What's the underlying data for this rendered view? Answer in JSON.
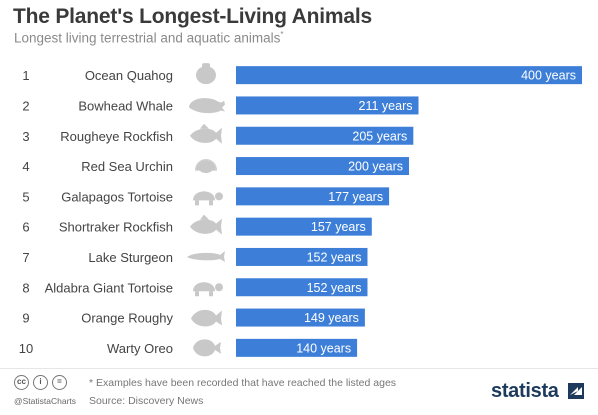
{
  "header": {
    "title": "The Planet's Longest-Living Animals",
    "subtitle": "Longest living terrestrial and aquatic animals",
    "subtitle_mark": "*"
  },
  "colors": {
    "bar": "#3d7fd8",
    "bar_label": "#ffffff",
    "rank_text": "#444444",
    "name_text": "#444444",
    "silhouette": "#c8c8c8",
    "row_band": "#f3f3f3"
  },
  "chart_data": {
    "type": "bar",
    "orientation": "horizontal",
    "title": "The Planet's Longest-Living Animals",
    "subtitle": "Longest living terrestrial and aquatic animals*",
    "xlim": [
      0,
      400
    ],
    "grid": false,
    "legend": "none",
    "ranks": [
      "1",
      "2",
      "3",
      "4",
      "5",
      "6",
      "7",
      "8",
      "9",
      "10"
    ],
    "categories": [
      "Ocean Quahog",
      "Bowhead Whale",
      "Rougheye Rockfish",
      "Red Sea Urchin",
      "Galapagos Tortoise",
      "Shortraker Rockfish",
      "Lake Sturgeon",
      "Aldabra Giant Tortoise",
      "Orange Roughy",
      "Warty Oreo"
    ],
    "icons": [
      "clam-icon",
      "whale-icon",
      "rockfish-icon",
      "urchin-icon",
      "tortoise-icon",
      "rockfish-icon",
      "sturgeon-icon",
      "tortoise-icon",
      "roughy-icon",
      "oreo-icon"
    ],
    "values": [
      400,
      211,
      205,
      200,
      177,
      157,
      152,
      152,
      149,
      140
    ],
    "value_labels": [
      "400 years",
      "211 years",
      "205 years",
      "200 years",
      "177 years",
      "157 years",
      "152 years",
      "152 years",
      "149 years",
      "140 years"
    ]
  },
  "footer": {
    "handle": "@StatistaCharts",
    "note": "* Examples have been recorded that have reached the listed ages",
    "source": "Source: Discovery News",
    "brand": "statista",
    "license_icons": [
      "cc-icon",
      "by-icon",
      "nd-icon"
    ]
  }
}
